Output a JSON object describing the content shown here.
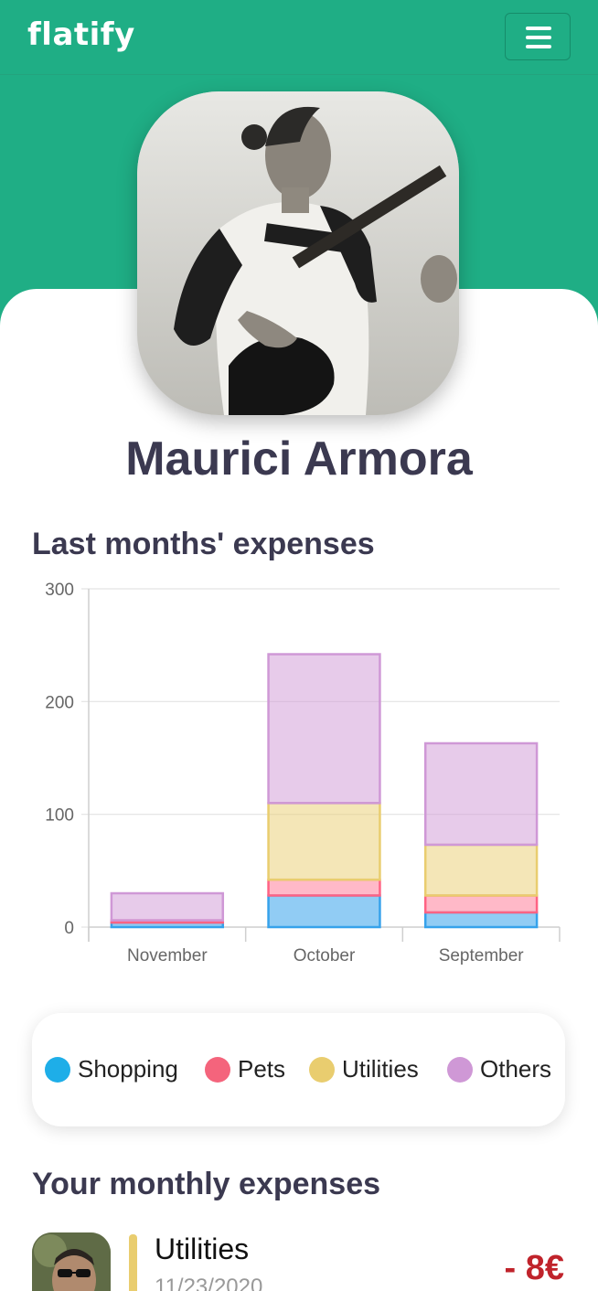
{
  "header": {
    "logo": "flatify",
    "menu_icon": "hamburger-menu-icon"
  },
  "profile": {
    "name": "Maurici Armora"
  },
  "chart_section": {
    "title": "Last months' expenses"
  },
  "chart_data": {
    "type": "bar",
    "stacked": true,
    "categories": [
      "November",
      "October",
      "September"
    ],
    "series": [
      {
        "name": "Shopping",
        "color": "#36a2eb",
        "values": [
          4,
          28,
          13
        ]
      },
      {
        "name": "Pets",
        "color": "#ff6384",
        "values": [
          2,
          14,
          15
        ]
      },
      {
        "name": "Utilities",
        "color": "#e9cd6f",
        "values": [
          0,
          68,
          45
        ]
      },
      {
        "name": "Others",
        "color": "#cf98d6",
        "values": [
          24,
          132,
          90
        ]
      }
    ],
    "ylim": [
      0,
      300
    ],
    "yticks": [
      0,
      100,
      200,
      300
    ],
    "grid": true
  },
  "legend": {
    "items": [
      {
        "label": "Shopping",
        "color": "#1eaee8"
      },
      {
        "label": "Pets",
        "color": "#f4647c"
      },
      {
        "label": "Utilities",
        "color": "#e9cd6f"
      },
      {
        "label": "Others",
        "color": "#cf98d6"
      }
    ]
  },
  "monthly_section": {
    "title": "Your monthly expenses"
  },
  "expenses": [
    {
      "category": "Utilities",
      "date": "11/23/2020",
      "amount": "- 8€",
      "color": "#e9cd6f"
    }
  ]
}
